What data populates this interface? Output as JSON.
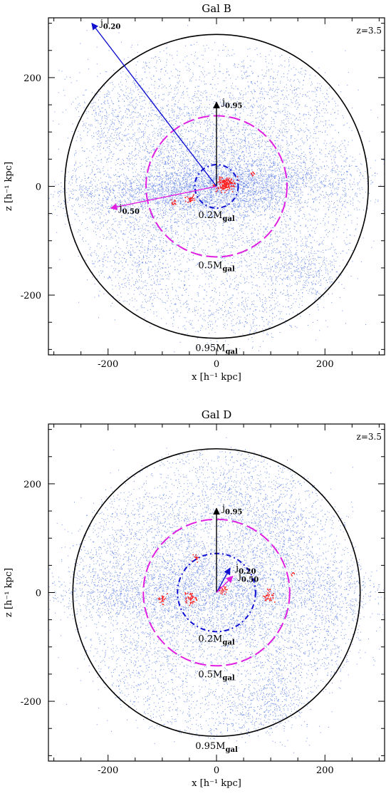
{
  "chart_data": [
    {
      "type": "scatter",
      "title": "Gal B",
      "annotation": "z=3.5",
      "xlabel": "x [h⁻¹ kpc]",
      "ylabel": "z [h⁻¹ kpc]",
      "xlim": [
        -310,
        310
      ],
      "ylim": [
        -310,
        310
      ],
      "xticks": [
        -200,
        0,
        200
      ],
      "yticks": [
        -200,
        0,
        200
      ],
      "particles": {
        "gas_color": "#4169e1",
        "star_color": "#ff2020"
      },
      "circles": [
        {
          "label": "0.95M",
          "label_sub": "gal",
          "radius": 280,
          "color": "#000000",
          "style": "solid"
        },
        {
          "label": "0.5M",
          "label_sub": "gal",
          "radius": 130,
          "color": "#e020e0",
          "style": "long-dash"
        },
        {
          "label": "0.2M",
          "label_sub": "gal",
          "radius": 40,
          "color": "#1010d0",
          "style": "dash-dot"
        }
      ],
      "vectors": [
        {
          "label": "j",
          "label_sub": "0.95",
          "x": 0,
          "z": 155,
          "color": "#000000"
        },
        {
          "label": "j",
          "label_sub": "0.20",
          "x": -230,
          "z": 300,
          "color": "#1010d0"
        },
        {
          "label": "j",
          "label_sub": "0.50",
          "x": -195,
          "z": -40,
          "color": "#e020e0"
        }
      ]
    },
    {
      "type": "scatter",
      "title": "Gal D",
      "annotation": "z=3.5",
      "xlabel": "x [h⁻¹ kpc]",
      "ylabel": "z [h⁻¹ kpc]",
      "xlim": [
        -310,
        310
      ],
      "ylim": [
        -310,
        310
      ],
      "xticks": [
        -200,
        0,
        200
      ],
      "yticks": [
        -200,
        0,
        200
      ],
      "particles": {
        "gas_color": "#4169e1",
        "star_color": "#ff2020"
      },
      "circles": [
        {
          "label": "0.95M",
          "label_sub": "gal",
          "radius": 265,
          "color": "#000000",
          "style": "solid"
        },
        {
          "label": "0.5M",
          "label_sub": "gal",
          "radius": 135,
          "color": "#e020e0",
          "style": "long-dash"
        },
        {
          "label": "0.2M",
          "label_sub": "gal",
          "radius": 72,
          "color": "#1010d0",
          "style": "dash-dot"
        }
      ],
      "vectors": [
        {
          "label": "j",
          "label_sub": "0.95",
          "x": 0,
          "z": 155,
          "color": "#000000"
        },
        {
          "label": "j",
          "label_sub": "0.20",
          "x": 25,
          "z": 45,
          "color": "#1010d0"
        },
        {
          "label": "j",
          "label_sub": "0.50",
          "x": 30,
          "z": 30,
          "color": "#e020e0"
        }
      ]
    }
  ]
}
